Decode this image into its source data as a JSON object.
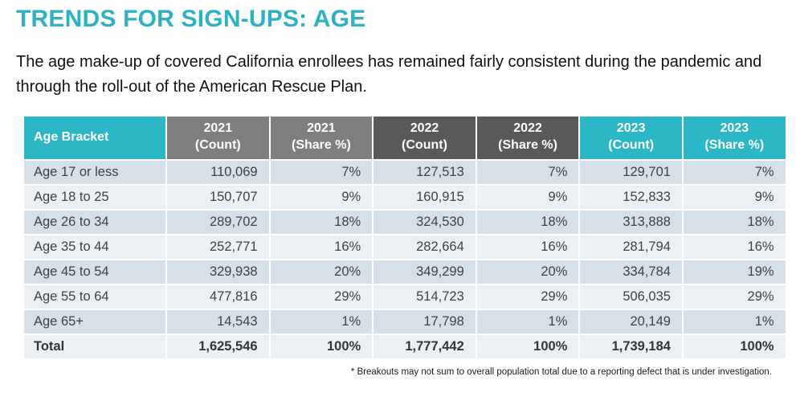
{
  "header": {
    "title": "TRENDS FOR SIGN-UPS: AGE",
    "subtitle": "The age make-up of covered California enrollees has remained fairly consistent during the pandemic and through the roll-out of the American Rescue Plan."
  },
  "table": {
    "columns": [
      {
        "key": "age-bracket",
        "line1": "Age Bracket",
        "line2": "",
        "theme": "teal"
      },
      {
        "key": "2021-count",
        "line1": "2021",
        "line2": "(Count)",
        "theme": "gray-mid"
      },
      {
        "key": "2021-share",
        "line1": "2021",
        "line2": "(Share %)",
        "theme": "gray-mid"
      },
      {
        "key": "2022-count",
        "line1": "2022",
        "line2": "(Count)",
        "theme": "gray-dark"
      },
      {
        "key": "2022-share",
        "line1": "2022",
        "line2": "(Share %)",
        "theme": "gray-dark"
      },
      {
        "key": "2023-count",
        "line1": "2023",
        "line2": "(Count)",
        "theme": "teal"
      },
      {
        "key": "2023-share",
        "line1": "2023",
        "line2": "(Share %)",
        "theme": "teal"
      }
    ],
    "rows": [
      {
        "bracket": "Age 17 or less",
        "values": [
          "110,069",
          "7%",
          "127,513",
          "7%",
          "129,701",
          "7%"
        ],
        "is_total": false
      },
      {
        "bracket": "Age 18 to 25",
        "values": [
          "150,707",
          "9%",
          "160,915",
          "9%",
          "152,833",
          "9%"
        ],
        "is_total": false
      },
      {
        "bracket": "Age 26 to 34",
        "values": [
          "289,702",
          "18%",
          "324,530",
          "18%",
          "313,888",
          "18%"
        ],
        "is_total": false
      },
      {
        "bracket": "Age 35 to 44",
        "values": [
          "252,771",
          "16%",
          "282,664",
          "16%",
          "281,794",
          "16%"
        ],
        "is_total": false
      },
      {
        "bracket": "Age 45 to 54",
        "values": [
          "329,938",
          "20%",
          "349,299",
          "20%",
          "334,784",
          "19%"
        ],
        "is_total": false
      },
      {
        "bracket": "Age 55 to 64",
        "values": [
          "477,816",
          "29%",
          "514,723",
          "29%",
          "506,035",
          "29%"
        ],
        "is_total": false
      },
      {
        "bracket": "Age 65+",
        "values": [
          "14,543",
          "1%",
          "17,798",
          "1%",
          "20,149",
          "1%"
        ],
        "is_total": false
      },
      {
        "bracket": "Total",
        "values": [
          "1,625,546",
          "100%",
          "1,777,442",
          "100%",
          "1,739,184",
          "100%"
        ],
        "is_total": true
      }
    ]
  },
  "footnote": "* Breakouts may not sum to overall population total due to a reporting defect that is under investigation.",
  "colors": {
    "title_teal": "#2EB2C3",
    "header_teal": "#2BB7C6",
    "header_gray_2021": "#7F7F7F",
    "header_gray_2022": "#595959",
    "row_shaded": "#D6E0E8",
    "row_light": "#EBF0F4"
  }
}
